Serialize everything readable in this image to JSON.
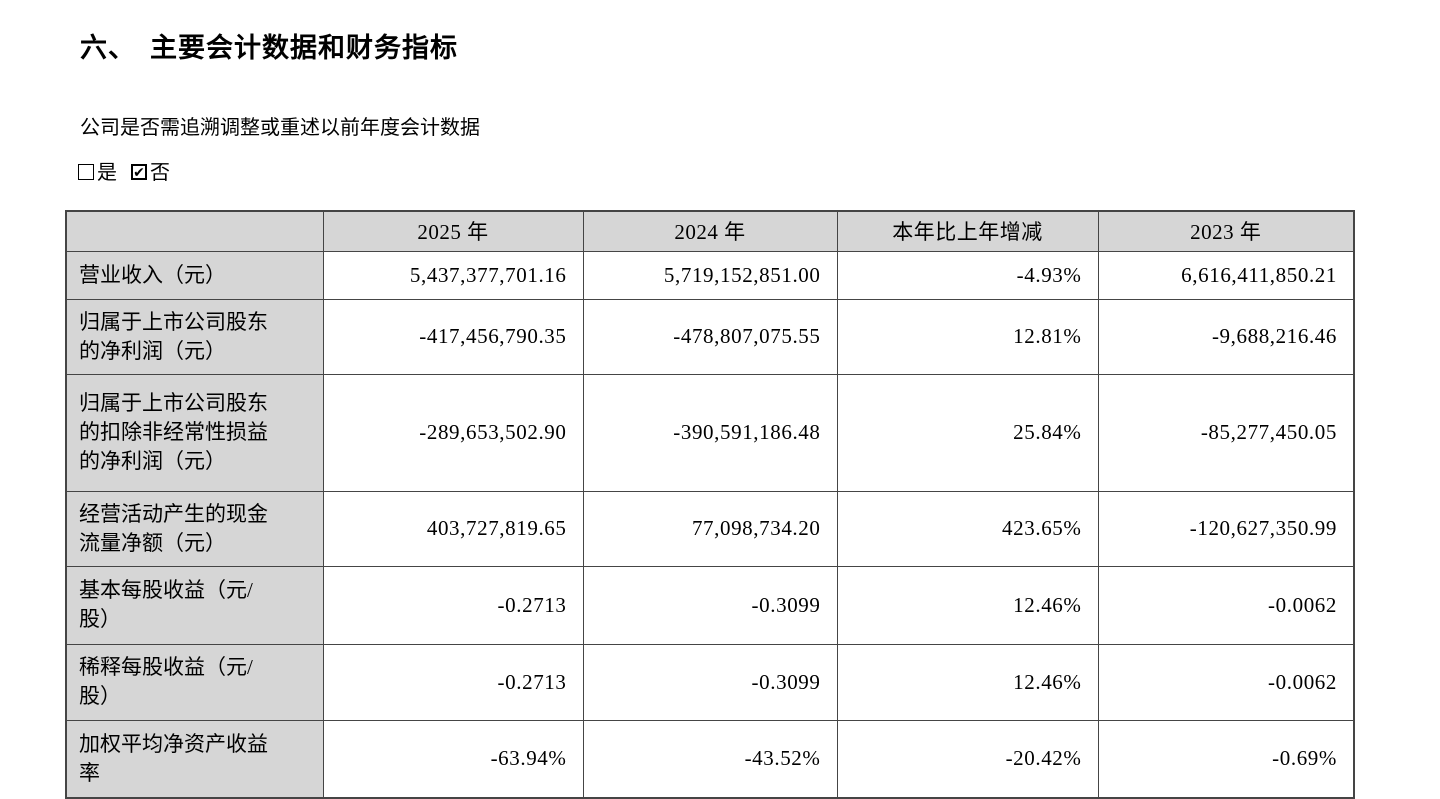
{
  "page": {
    "title_number": "六、",
    "title_text": "主要会计数据和财务指标",
    "question": "公司是否需追溯调整或重述以前年度会计数据",
    "options": [
      {
        "label": "是",
        "checked": false
      },
      {
        "label": "否",
        "checked": true
      }
    ],
    "check_glyph": "✔"
  },
  "colors": {
    "header_fill": "#d6d6d6",
    "border": "#454545",
    "text": "#000000",
    "page_bg": "#ffffff"
  },
  "table": {
    "headers": [
      "",
      "2025 年",
      "2024 年",
      "本年比上年增减",
      "2023 年"
    ],
    "rows": [
      {
        "label": "营业收入（元）",
        "values": [
          "5,437,377,701.16",
          "5,719,152,851.00",
          "-4.93%",
          "6,616,411,850.21"
        ]
      },
      {
        "label": "归属于上市公司股东的净利润（元）",
        "values": [
          "-417,456,790.35",
          "-478,807,075.55",
          "12.81%",
          "-9,688,216.46"
        ]
      },
      {
        "label": "归属于上市公司股东的扣除非经常性损益的净利润（元）",
        "values": [
          "-289,653,502.90",
          "-390,591,186.48",
          "25.84%",
          "-85,277,450.05"
        ]
      },
      {
        "label": "经营活动产生的现金流量净额（元）",
        "values": [
          "403,727,819.65",
          "77,098,734.20",
          "423.65%",
          "-120,627,350.99"
        ]
      },
      {
        "label": "基本每股收益（元/股）",
        "values": [
          "-0.2713",
          "-0.3099",
          "12.46%",
          "-0.0062"
        ]
      },
      {
        "label": "稀释每股收益（元/股）",
        "values": [
          "-0.2713",
          "-0.3099",
          "12.46%",
          "-0.0062"
        ]
      },
      {
        "label": "加权平均净资产收益率",
        "values": [
          "-63.94%",
          "-43.52%",
          "-20.42%",
          "-0.69%"
        ]
      }
    ]
  }
}
